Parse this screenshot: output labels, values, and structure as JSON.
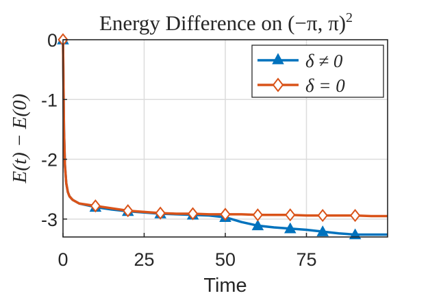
{
  "chart_data": {
    "type": "line",
    "title": "Energy Difference on (−π, π)",
    "title_superscript": "2",
    "xlabel": "Time",
    "ylabel": "E(t) − E(0)",
    "xlim": [
      0,
      100
    ],
    "ylim": [
      -3.3,
      0
    ],
    "xticks": [
      0,
      25,
      50,
      75
    ],
    "yticks": [
      0,
      -1,
      -2,
      -3
    ],
    "xtick_labels": [
      "0",
      "25",
      "50",
      "75"
    ],
    "ytick_labels": [
      "0",
      "-1",
      "-2",
      "-3"
    ],
    "grid": true,
    "legend_position": "top-right",
    "series": [
      {
        "name": "δ ≠ 0",
        "color": "#0072BD",
        "marker": "triangle",
        "x": [
          0,
          0.3,
          0.6,
          1,
          1.5,
          2,
          3,
          5,
          10,
          15,
          20,
          25,
          30,
          35,
          40,
          45,
          50,
          55,
          60,
          65,
          70,
          75,
          80,
          85,
          90,
          95,
          100
        ],
        "y": [
          0,
          -1.5,
          -2.1,
          -2.4,
          -2.55,
          -2.62,
          -2.68,
          -2.74,
          -2.8,
          -2.84,
          -2.87,
          -2.89,
          -2.91,
          -2.92,
          -2.93,
          -2.94,
          -2.97,
          -3.05,
          -3.11,
          -3.14,
          -3.16,
          -3.18,
          -3.21,
          -3.24,
          -3.26,
          -3.26,
          -3.26
        ],
        "marker_x": [
          0,
          10,
          20,
          30,
          40,
          50,
          60,
          70,
          80,
          90
        ],
        "marker_y": [
          0,
          -2.8,
          -2.87,
          -2.91,
          -2.93,
          -2.97,
          -3.11,
          -3.16,
          -3.21,
          -3.26
        ]
      },
      {
        "name": "δ = 0",
        "color": "#D95319",
        "marker": "diamond",
        "x": [
          0,
          0.3,
          0.6,
          1,
          1.5,
          2,
          3,
          5,
          10,
          15,
          20,
          25,
          30,
          35,
          40,
          45,
          50,
          55,
          60,
          65,
          70,
          75,
          80,
          85,
          90,
          95,
          100
        ],
        "y": [
          0,
          -1.5,
          -2.1,
          -2.4,
          -2.55,
          -2.62,
          -2.68,
          -2.74,
          -2.78,
          -2.82,
          -2.86,
          -2.88,
          -2.9,
          -2.91,
          -2.91,
          -2.92,
          -2.92,
          -2.92,
          -2.93,
          -2.93,
          -2.93,
          -2.94,
          -2.94,
          -2.94,
          -2.94,
          -2.95,
          -2.95
        ],
        "marker_x": [
          0,
          10,
          20,
          30,
          40,
          50,
          60,
          70,
          80,
          90
        ],
        "marker_y": [
          0,
          -2.78,
          -2.86,
          -2.9,
          -2.91,
          -2.92,
          -2.93,
          -2.93,
          -2.94,
          -2.94
        ]
      }
    ]
  }
}
